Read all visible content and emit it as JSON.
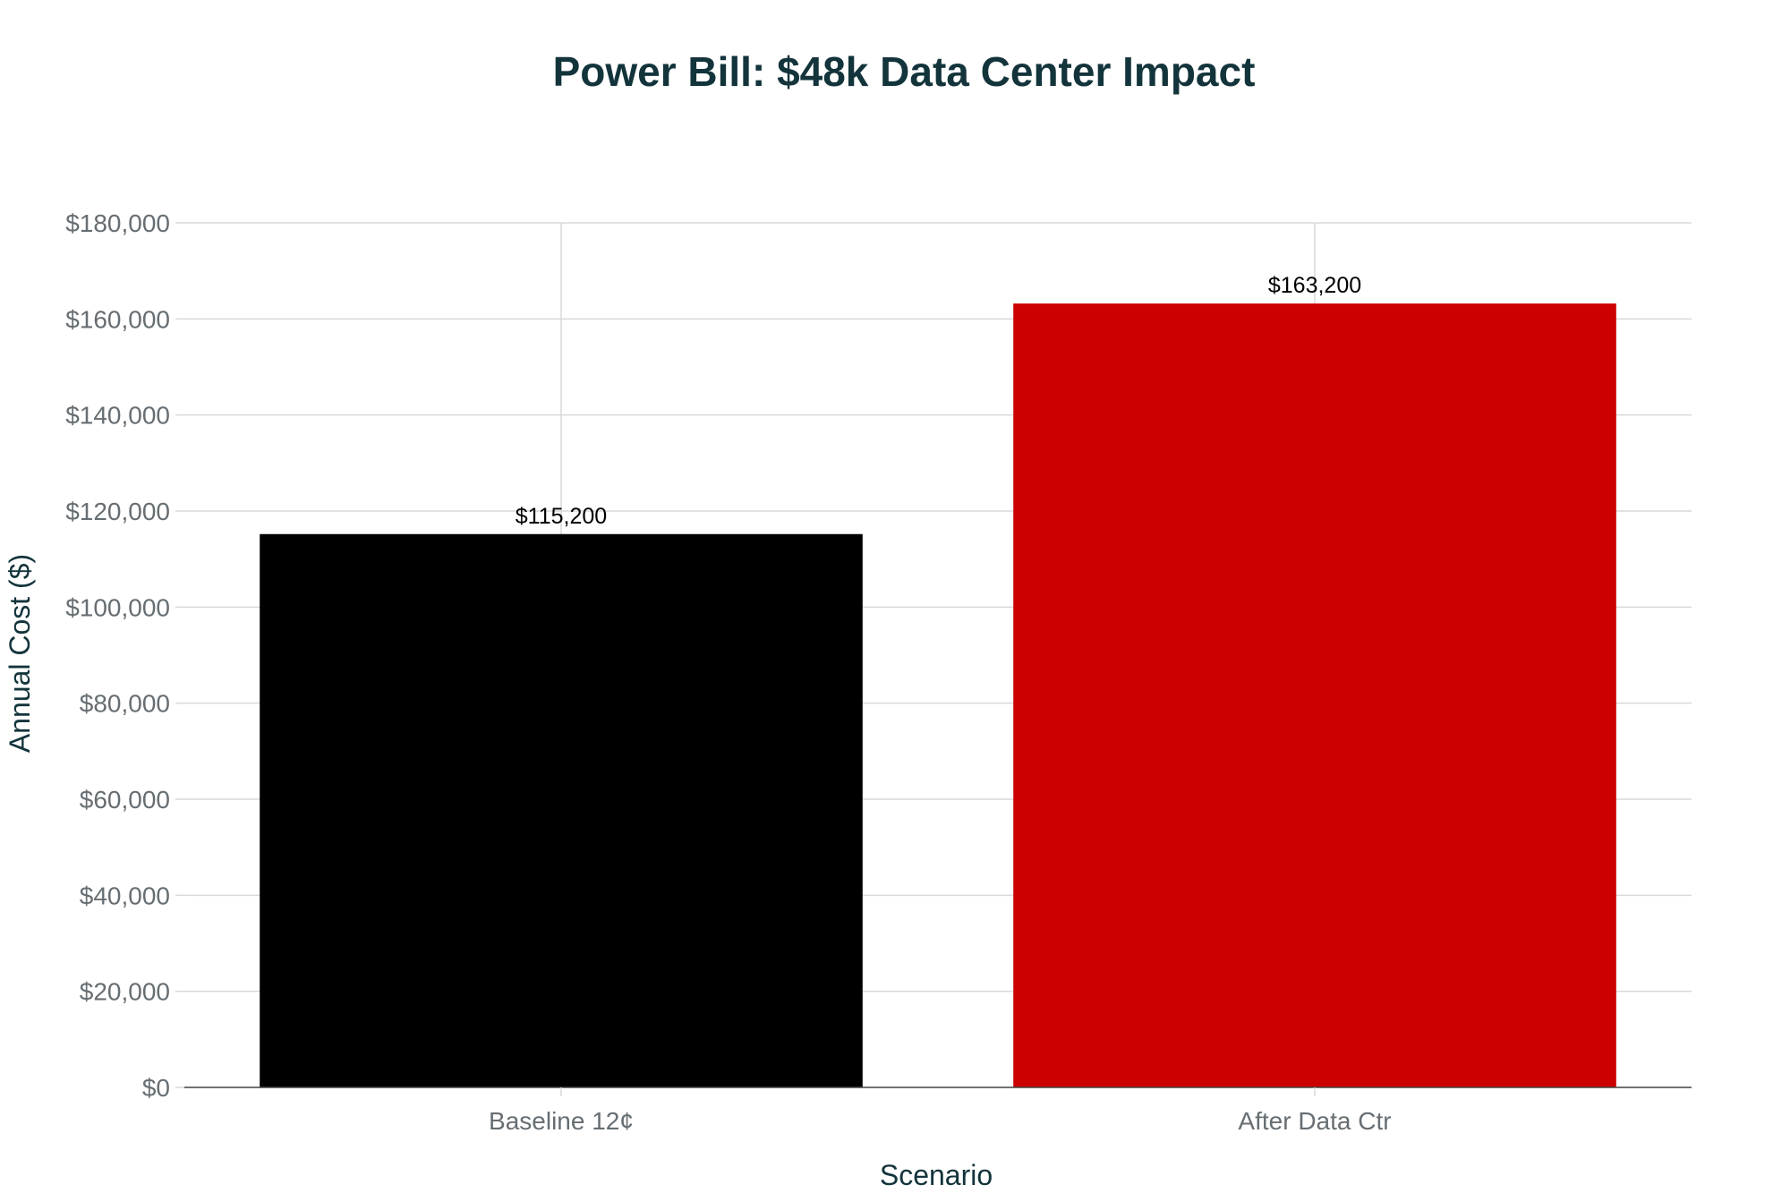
{
  "chart_data": {
    "type": "bar",
    "title": "Power Bill: $48k Data Center Impact",
    "xlabel": "Scenario",
    "ylabel": "Annual Cost ($)",
    "categories": [
      "Baseline 12¢",
      "After Data Ctr"
    ],
    "values": [
      115200,
      163200
    ],
    "value_labels": [
      "$115,200",
      "$163,200"
    ],
    "colors": [
      "#000000",
      "#cc0000"
    ],
    "ylim": [
      0,
      180000
    ],
    "yticks": [
      0,
      20000,
      40000,
      60000,
      80000,
      100000,
      120000,
      140000,
      160000,
      180000
    ],
    "ytick_labels": [
      "$0",
      "$20,000",
      "$40,000",
      "$60,000",
      "$80,000",
      "$100,000",
      "$120,000",
      "$140,000",
      "$160,000",
      "$180,000"
    ],
    "grid": true,
    "legend": "none"
  }
}
